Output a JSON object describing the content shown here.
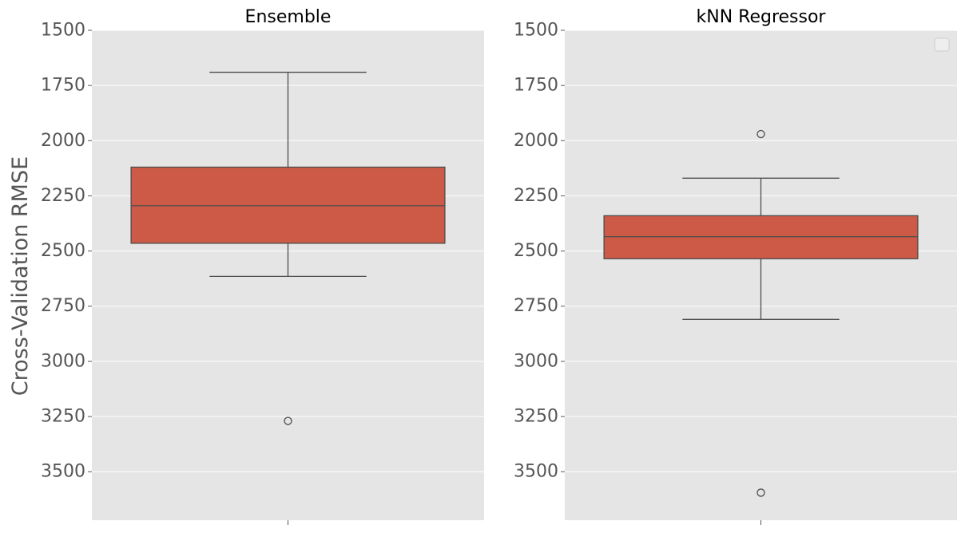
{
  "figure": {
    "ylabel": "Cross-Validation RMSE",
    "colors": {
      "panel_bg": "#e5e5e5",
      "grid": "#ffffff",
      "box_fill": "#cc5a47",
      "line": "#4d4d4d",
      "tick_text": "#555555",
      "title_text": "#000000"
    }
  },
  "chart_data": [
    {
      "type": "box",
      "title": "Ensemble",
      "ylim": [
        1500,
        3720
      ],
      "y_inverted": true,
      "yticks": [
        "1500",
        "1750",
        "2000",
        "2250",
        "2500",
        "2750",
        "3000",
        "3250",
        "3500"
      ],
      "grid": true,
      "legend": "none",
      "box": {
        "whisker_low": 1690,
        "q1": 2120,
        "median": 2295,
        "q3": 2465,
        "whisker_high": 2615,
        "outliers": [
          3270
        ]
      }
    },
    {
      "type": "box",
      "title": "kNN Regressor",
      "ylim": [
        1500,
        3720
      ],
      "y_inverted": true,
      "yticks": [
        "1500",
        "1750",
        "2000",
        "2250",
        "2500",
        "2750",
        "3000",
        "3250",
        "3500"
      ],
      "grid": true,
      "legend": "empty box top-right",
      "box": {
        "whisker_low": 2170,
        "q1": 2340,
        "median": 2435,
        "q3": 2535,
        "whisker_high": 2810,
        "outliers": [
          1970,
          3595
        ]
      }
    }
  ]
}
